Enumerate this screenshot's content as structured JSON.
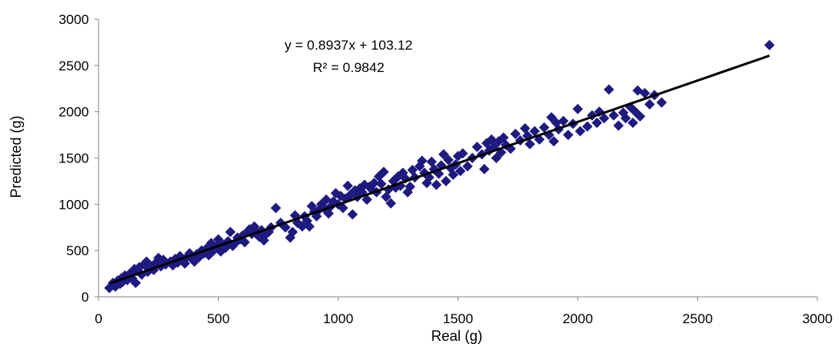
{
  "chart_data": {
    "type": "scatter",
    "title": "",
    "xlabel": "Real (g)",
    "ylabel": "Predicted (g)",
    "xlim": [
      0,
      3000
    ],
    "ylim": [
      0,
      3000
    ],
    "x_ticks": [
      "0",
      "500",
      "1000",
      "1500",
      "2000",
      "2500",
      "3000"
    ],
    "y_ticks": [
      "0",
      "500",
      "1000",
      "1500",
      "2000",
      "2500",
      "3000"
    ],
    "grid": false,
    "legend": "none",
    "marker": "diamond",
    "marker_color": "#1f1a80",
    "trendline": {
      "slope": 0.8937,
      "intercept": 103.12,
      "x_range": [
        50,
        2800
      ],
      "color": "#000000",
      "equation_label": "y = 0.8937x + 103.12",
      "r2_label": "R² = 0.9842"
    },
    "series": [
      {
        "points": [
          [
            45,
            95
          ],
          [
            55,
            120
          ],
          [
            60,
            150
          ],
          [
            70,
            110
          ],
          [
            80,
            175
          ],
          [
            90,
            140
          ],
          [
            95,
            200
          ],
          [
            100,
            160
          ],
          [
            110,
            230
          ],
          [
            120,
            180
          ],
          [
            130,
            250
          ],
          [
            140,
            200
          ],
          [
            150,
            300
          ],
          [
            155,
            150
          ],
          [
            160,
            280
          ],
          [
            170,
            320
          ],
          [
            180,
            240
          ],
          [
            190,
            350
          ],
          [
            200,
            380
          ],
          [
            205,
            270
          ],
          [
            210,
            300
          ],
          [
            220,
            330
          ],
          [
            230,
            290
          ],
          [
            240,
            370
          ],
          [
            250,
            420
          ],
          [
            260,
            330
          ],
          [
            270,
            400
          ],
          [
            280,
            350
          ],
          [
            300,
            380
          ],
          [
            310,
            340
          ],
          [
            320,
            410
          ],
          [
            330,
            370
          ],
          [
            340,
            440
          ],
          [
            350,
            390
          ],
          [
            360,
            360
          ],
          [
            370,
            430
          ],
          [
            380,
            470
          ],
          [
            390,
            410
          ],
          [
            400,
            380
          ],
          [
            410,
            460
          ],
          [
            420,
            430
          ],
          [
            430,
            500
          ],
          [
            440,
            470
          ],
          [
            450,
            520
          ],
          [
            460,
            450
          ],
          [
            470,
            580
          ],
          [
            480,
            500
          ],
          [
            490,
            540
          ],
          [
            500,
            620
          ],
          [
            510,
            490
          ],
          [
            520,
            560
          ],
          [
            530,
            530
          ],
          [
            540,
            600
          ],
          [
            550,
            700
          ],
          [
            560,
            550
          ],
          [
            570,
            580
          ],
          [
            580,
            640
          ],
          [
            590,
            620
          ],
          [
            600,
            660
          ],
          [
            610,
            590
          ],
          [
            620,
            700
          ],
          [
            630,
            730
          ],
          [
            640,
            680
          ],
          [
            650,
            760
          ],
          [
            660,
            700
          ],
          [
            670,
            650
          ],
          [
            680,
            720
          ],
          [
            690,
            610
          ],
          [
            700,
            680
          ],
          [
            710,
            700
          ],
          [
            720,
            750
          ],
          [
            740,
            960
          ],
          [
            760,
            800
          ],
          [
            780,
            750
          ],
          [
            800,
            640
          ],
          [
            810,
            700
          ],
          [
            820,
            880
          ],
          [
            830,
            800
          ],
          [
            850,
            760
          ],
          [
            860,
            870
          ],
          [
            870,
            820
          ],
          [
            880,
            760
          ],
          [
            890,
            980
          ],
          [
            900,
            920
          ],
          [
            910,
            870
          ],
          [
            920,
            940
          ],
          [
            930,
            1000
          ],
          [
            940,
            960
          ],
          [
            950,
            1050
          ],
          [
            960,
            900
          ],
          [
            970,
            980
          ],
          [
            980,
            1030
          ],
          [
            990,
            1120
          ],
          [
            1000,
            1000
          ],
          [
            1010,
            1090
          ],
          [
            1020,
            960
          ],
          [
            1030,
            1060
          ],
          [
            1040,
            1200
          ],
          [
            1050,
            1100
          ],
          [
            1060,
            890
          ],
          [
            1070,
            1150
          ],
          [
            1080,
            1080
          ],
          [
            1090,
            1170
          ],
          [
            1100,
            1130
          ],
          [
            1110,
            1210
          ],
          [
            1120,
            1050
          ],
          [
            1130,
            1190
          ],
          [
            1140,
            1160
          ],
          [
            1150,
            1230
          ],
          [
            1160,
            1130
          ],
          [
            1170,
            1300
          ],
          [
            1180,
            1220
          ],
          [
            1190,
            1350
          ],
          [
            1200,
            1080
          ],
          [
            1210,
            1160
          ],
          [
            1220,
            1010
          ],
          [
            1230,
            1250
          ],
          [
            1240,
            1180
          ],
          [
            1250,
            1300
          ],
          [
            1260,
            1200
          ],
          [
            1270,
            1340
          ],
          [
            1280,
            1280
          ],
          [
            1290,
            1130
          ],
          [
            1300,
            1190
          ],
          [
            1310,
            1370
          ],
          [
            1320,
            1290
          ],
          [
            1340,
            1410
          ],
          [
            1350,
            1470
          ],
          [
            1360,
            1340
          ],
          [
            1370,
            1230
          ],
          [
            1380,
            1290
          ],
          [
            1390,
            1460
          ],
          [
            1400,
            1380
          ],
          [
            1410,
            1210
          ],
          [
            1420,
            1330
          ],
          [
            1430,
            1420
          ],
          [
            1440,
            1540
          ],
          [
            1450,
            1250
          ],
          [
            1460,
            1480
          ],
          [
            1470,
            1390
          ],
          [
            1480,
            1320
          ],
          [
            1490,
            1430
          ],
          [
            1500,
            1520
          ],
          [
            1510,
            1360
          ],
          [
            1520,
            1550
          ],
          [
            1540,
            1410
          ],
          [
            1560,
            1500
          ],
          [
            1580,
            1620
          ],
          [
            1600,
            1540
          ],
          [
            1610,
            1380
          ],
          [
            1620,
            1660
          ],
          [
            1630,
            1580
          ],
          [
            1640,
            1700
          ],
          [
            1650,
            1620
          ],
          [
            1660,
            1500
          ],
          [
            1670,
            1680
          ],
          [
            1680,
            1560
          ],
          [
            1690,
            1720
          ],
          [
            1700,
            1640
          ],
          [
            1720,
            1600
          ],
          [
            1740,
            1760
          ],
          [
            1760,
            1690
          ],
          [
            1780,
            1820
          ],
          [
            1790,
            1740
          ],
          [
            1800,
            1650
          ],
          [
            1820,
            1790
          ],
          [
            1840,
            1700
          ],
          [
            1860,
            1830
          ],
          [
            1880,
            1750
          ],
          [
            1890,
            1940
          ],
          [
            1900,
            1680
          ],
          [
            1910,
            1880
          ],
          [
            1920,
            1810
          ],
          [
            1940,
            1900
          ],
          [
            1960,
            1750
          ],
          [
            1980,
            1870
          ],
          [
            2000,
            2030
          ],
          [
            2010,
            1790
          ],
          [
            2040,
            1840
          ],
          [
            2060,
            1960
          ],
          [
            2080,
            1880
          ],
          [
            2090,
            2000
          ],
          [
            2110,
            1930
          ],
          [
            2130,
            2240
          ],
          [
            2150,
            1960
          ],
          [
            2170,
            1850
          ],
          [
            2190,
            1990
          ],
          [
            2200,
            1930
          ],
          [
            2220,
            2050
          ],
          [
            2230,
            1880
          ],
          [
            2240,
            2000
          ],
          [
            2250,
            2230
          ],
          [
            2260,
            1950
          ],
          [
            2280,
            2200
          ],
          [
            2300,
            2080
          ],
          [
            2320,
            2180
          ],
          [
            2350,
            2100
          ],
          [
            2800,
            2720
          ]
        ]
      }
    ]
  }
}
